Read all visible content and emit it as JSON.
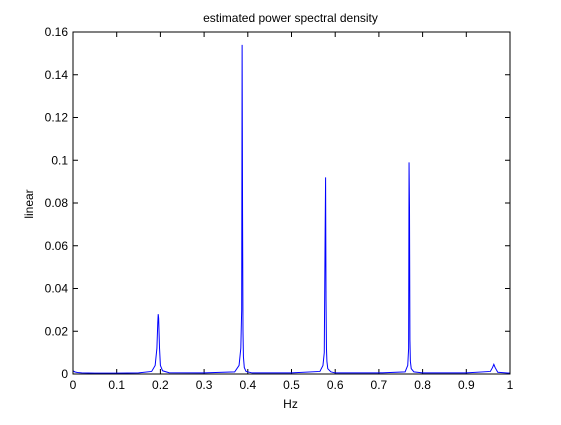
{
  "chart_data": {
    "type": "line",
    "title": "estimated power spectral density",
    "xlabel": "Hz",
    "ylabel": "linear",
    "xlim": [
      0,
      1
    ],
    "ylim": [
      0,
      0.16
    ],
    "xticks": [
      0,
      0.1,
      0.2,
      0.3,
      0.4,
      0.5,
      0.6,
      0.7,
      0.8,
      0.9,
      1
    ],
    "xtick_labels": [
      "0",
      "0.1",
      "0.2",
      "0.3",
      "0.4",
      "0.5",
      "0.6",
      "0.7",
      "0.8",
      "0.9",
      "1"
    ],
    "yticks": [
      0,
      0.02,
      0.04,
      0.06,
      0.08,
      0.1,
      0.12,
      0.14,
      0.16
    ],
    "ytick_labels": [
      "0",
      "0.02",
      "0.04",
      "0.06",
      "0.08",
      "0.1",
      "0.12",
      "0.14",
      "0.16"
    ],
    "grid": false,
    "series": [
      {
        "color": "#0000ff",
        "x": [
          0,
          0.004,
          0.01,
          0.02,
          0.05,
          0.1,
          0.15,
          0.18,
          0.188,
          0.192,
          0.194,
          0.195,
          0.196,
          0.198,
          0.2,
          0.205,
          0.22,
          0.3,
          0.37,
          0.38,
          0.384,
          0.386,
          0.387,
          0.388,
          0.389,
          0.39,
          0.392,
          0.396,
          0.41,
          0.5,
          0.565,
          0.572,
          0.575,
          0.577,
          0.578,
          0.579,
          0.58,
          0.581,
          0.583,
          0.59,
          0.6,
          0.7,
          0.76,
          0.766,
          0.768,
          0.769,
          0.77,
          0.771,
          0.772,
          0.774,
          0.78,
          0.8,
          0.9,
          0.955,
          0.96,
          0.963,
          0.966,
          0.972,
          1
        ],
        "y": [
          0.0015,
          0.001,
          0.0007,
          0.0005,
          0.0004,
          0.0004,
          0.0005,
          0.0012,
          0.004,
          0.012,
          0.024,
          0.028,
          0.026,
          0.012,
          0.004,
          0.0015,
          0.0006,
          0.0005,
          0.001,
          0.004,
          0.012,
          0.03,
          0.154,
          0.075,
          0.02,
          0.008,
          0.003,
          0.0012,
          0.0005,
          0.0005,
          0.0012,
          0.004,
          0.01,
          0.067,
          0.092,
          0.035,
          0.012,
          0.006,
          0.0025,
          0.001,
          0.0005,
          0.0005,
          0.001,
          0.004,
          0.012,
          0.099,
          0.078,
          0.016,
          0.006,
          0.0025,
          0.001,
          0.0005,
          0.0005,
          0.0012,
          0.003,
          0.0045,
          0.003,
          0.0008,
          0.0004
        ]
      }
    ]
  }
}
